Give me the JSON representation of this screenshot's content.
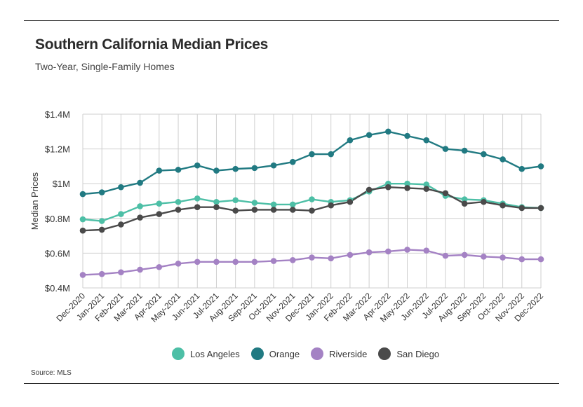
{
  "header": {
    "title": "Southern California Median Prices",
    "subtitle": "Two-Year, Single-Family Homes"
  },
  "footer": {
    "source": "Source:  MLS"
  },
  "chart_data": {
    "type": "line",
    "title": "Southern California Median Prices",
    "subtitle": "Two-Year, Single-Family Homes",
    "xlabel": "",
    "ylabel": "Median Prices",
    "ylim": [
      0.4,
      1.4
    ],
    "yticks": [
      0.4,
      0.6,
      0.8,
      1.0,
      1.2,
      1.4
    ],
    "ytick_labels": [
      "$0.4M",
      "$0.6M",
      "$0.8M",
      "$1M",
      "$1.2M",
      "$1.4M"
    ],
    "grid": true,
    "legend_position": "bottom-center",
    "categories": [
      "Dec-2020",
      "Jan-2021",
      "Feb-2021",
      "Mar-2021",
      "Apr-2021",
      "May-2021",
      "Jun-2021",
      "Jul-2021",
      "Aug-2021",
      "Sep-2021",
      "Oct-2021",
      "Nov-2021",
      "Dec-2021",
      "Jan-2022",
      "Feb-2022",
      "Mar-2022",
      "Apr-2022",
      "May-2022",
      "Jun-2022",
      "Jul-2022",
      "Aug-2022",
      "Sep-2022",
      "Oct-2022",
      "Nov-2022",
      "Dec-2022"
    ],
    "series": [
      {
        "name": "Los Angeles",
        "color": "#4dbfa6",
        "values": [
          0.795,
          0.785,
          0.825,
          0.87,
          0.885,
          0.895,
          0.915,
          0.895,
          0.905,
          0.89,
          0.88,
          0.88,
          0.91,
          0.895,
          0.905,
          0.955,
          1.0,
          1.0,
          0.995,
          0.93,
          0.91,
          0.905,
          0.885,
          0.865,
          0.86
        ]
      },
      {
        "name": "Orange",
        "color": "#217a82",
        "values": [
          0.94,
          0.95,
          0.98,
          1.005,
          1.075,
          1.08,
          1.105,
          1.075,
          1.085,
          1.09,
          1.105,
          1.125,
          1.17,
          1.17,
          1.25,
          1.28,
          1.3,
          1.275,
          1.25,
          1.2,
          1.19,
          1.17,
          1.14,
          1.085,
          1.1
        ]
      },
      {
        "name": "Riverside",
        "color": "#a482c4",
        "values": [
          0.475,
          0.48,
          0.49,
          0.505,
          0.52,
          0.54,
          0.55,
          0.55,
          0.55,
          0.55,
          0.555,
          0.56,
          0.575,
          0.57,
          0.59,
          0.605,
          0.61,
          0.62,
          0.615,
          0.585,
          0.59,
          0.58,
          0.575,
          0.565,
          0.565
        ]
      },
      {
        "name": "San Diego",
        "color": "#4a4a4a",
        "values": [
          0.73,
          0.735,
          0.765,
          0.805,
          0.825,
          0.85,
          0.865,
          0.865,
          0.845,
          0.85,
          0.85,
          0.85,
          0.845,
          0.875,
          0.895,
          0.965,
          0.98,
          0.975,
          0.97,
          0.945,
          0.885,
          0.895,
          0.875,
          0.86,
          0.86
        ]
      }
    ]
  }
}
